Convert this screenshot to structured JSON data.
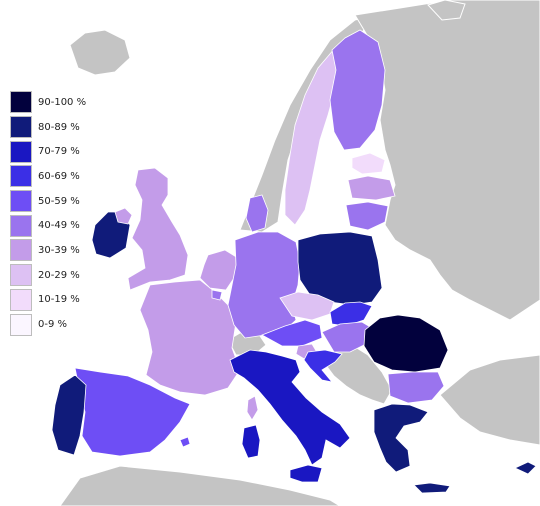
{
  "legend": {
    "items": [
      {
        "label": "90-100 %",
        "color": "#02013d"
      },
      {
        "label": "80-89 %",
        "color": "#101b7a"
      },
      {
        "label": "70-79 %",
        "color": "#1a17c2"
      },
      {
        "label": "60-69 %",
        "color": "#3b2fe6"
      },
      {
        "label": "50-59 %",
        "color": "#6e4ef5"
      },
      {
        "label": "40-49 %",
        "color": "#9a74ee"
      },
      {
        "label": "30-39 %",
        "color": "#c39ce9"
      },
      {
        "label": "20-29 %",
        "color": "#ddc1f3"
      },
      {
        "label": "10-19 %",
        "color": "#f2dcfb"
      },
      {
        "label": "0-9 %",
        "color": "#fbf6ff"
      }
    ]
  },
  "map_colors": {
    "sea": "#ffffff",
    "non_member": "#c4c4c4",
    "border": "#ffffff"
  }
}
